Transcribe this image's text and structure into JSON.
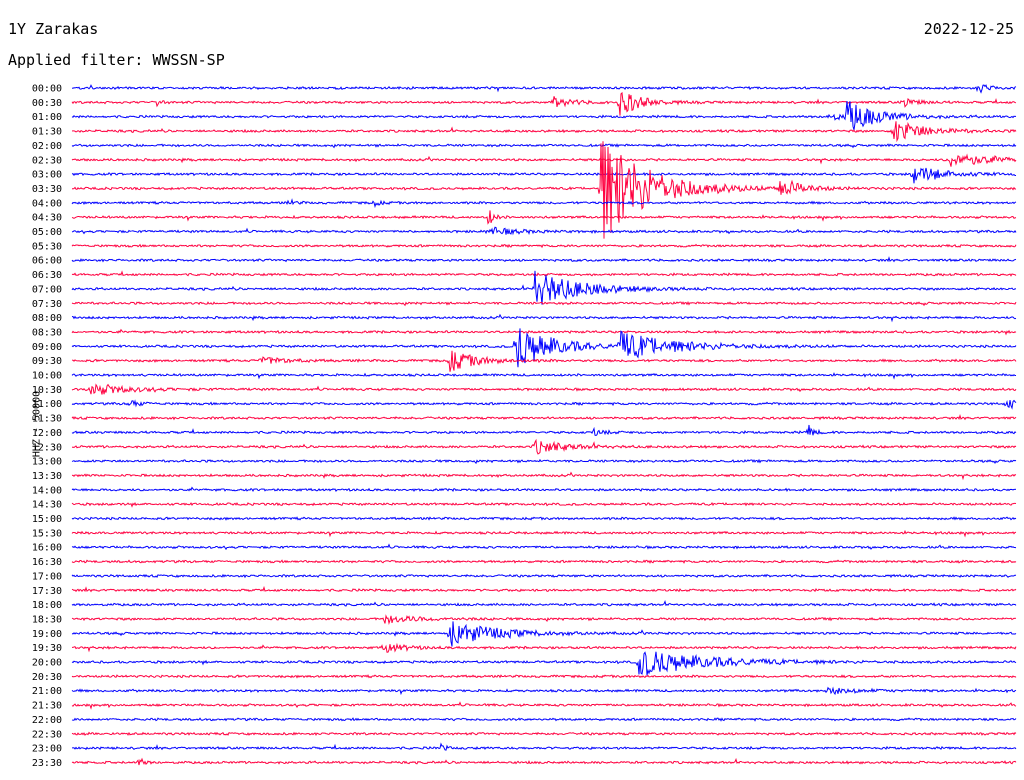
{
  "header": {
    "station": "1Y Zarakas",
    "date": "2022-12-25",
    "filter": "Applied filter: WWSSN-SP"
  },
  "chart_data": {
    "type": "line",
    "title": "1Y Zarakas",
    "subtitle": "Applied filter: WWSSN-SP",
    "ylabel": "HHZ - 50000",
    "xlabel": "",
    "colors": {
      "even_rows": "#0000ff",
      "odd_rows": "#ff0040"
    },
    "rows": [
      "00:00",
      "00:30",
      "01:00",
      "01:30",
      "02:00",
      "02:30",
      "03:00",
      "03:30",
      "04:00",
      "04:30",
      "05:00",
      "05:30",
      "06:00",
      "06:30",
      "07:00",
      "07:30",
      "08:00",
      "08:30",
      "09:00",
      "09:30",
      "10:00",
      "10:30",
      "11:00",
      "11:30",
      "12:00",
      "12:30",
      "13:00",
      "13:30",
      "14:00",
      "14:30",
      "15:00",
      "15:30",
      "16:00",
      "16:30",
      "17:00",
      "17:30",
      "18:00",
      "18:30",
      "19:00",
      "19:30",
      "20:00",
      "20:30",
      "21:00",
      "21:30",
      "22:00",
      "22:30",
      "23:00",
      "23:30"
    ],
    "events": [
      {
        "row": 0,
        "t": 0.96,
        "amp": 6,
        "dur": 0.01
      },
      {
        "row": 1,
        "t": 0.09,
        "amp": 3,
        "dur": 0.005
      },
      {
        "row": 1,
        "t": 0.51,
        "amp": 5,
        "dur": 0.02
      },
      {
        "row": 1,
        "t": 0.58,
        "amp": 14,
        "dur": 0.02
      },
      {
        "row": 1,
        "t": 0.88,
        "amp": 4,
        "dur": 0.015
      },
      {
        "row": 2,
        "t": 0.8,
        "amp": 4,
        "dur": 0.015
      },
      {
        "row": 2,
        "t": 0.82,
        "amp": 16,
        "dur": 0.03
      },
      {
        "row": 3,
        "t": 0.87,
        "amp": 12,
        "dur": 0.03
      },
      {
        "row": 5,
        "t": 0.93,
        "amp": 7,
        "dur": 0.04
      },
      {
        "row": 6,
        "t": 0.89,
        "amp": 9,
        "dur": 0.03
      },
      {
        "row": 7,
        "t": 0.56,
        "amp": 58,
        "dur": 0.045
      },
      {
        "row": 7,
        "t": 0.75,
        "amp": 10,
        "dur": 0.02
      },
      {
        "row": 8,
        "t": 0.23,
        "amp": 4,
        "dur": 0.005
      },
      {
        "row": 8,
        "t": 0.32,
        "amp": 4,
        "dur": 0.005
      },
      {
        "row": 9,
        "t": 0.44,
        "amp": 12,
        "dur": 0.005
      },
      {
        "row": 10,
        "t": 0.44,
        "amp": 4,
        "dur": 0.03
      },
      {
        "row": 14,
        "t": 0.49,
        "amp": 18,
        "dur": 0.045
      },
      {
        "row": 18,
        "t": 0.47,
        "amp": 24,
        "dur": 0.035
      },
      {
        "row": 18,
        "t": 0.58,
        "amp": 14,
        "dur": 0.055
      },
      {
        "row": 19,
        "t": 0.4,
        "amp": 11,
        "dur": 0.025
      },
      {
        "row": 19,
        "t": 0.2,
        "amp": 4,
        "dur": 0.025
      },
      {
        "row": 21,
        "t": 0.02,
        "amp": 6,
        "dur": 0.035
      },
      {
        "row": 22,
        "t": 0.06,
        "amp": 4,
        "dur": 0.01
      },
      {
        "row": 22,
        "t": 0.99,
        "amp": 6,
        "dur": 0.01
      },
      {
        "row": 24,
        "t": 0.55,
        "amp": 4,
        "dur": 0.01
      },
      {
        "row": 24,
        "t": 0.78,
        "amp": 8,
        "dur": 0.005
      },
      {
        "row": 25,
        "t": 0.49,
        "amp": 7,
        "dur": 0.03
      },
      {
        "row": 37,
        "t": 0.33,
        "amp": 4,
        "dur": 0.035
      },
      {
        "row": 38,
        "t": 0.4,
        "amp": 13,
        "dur": 0.045
      },
      {
        "row": 39,
        "t": 0.33,
        "amp": 5,
        "dur": 0.02
      },
      {
        "row": 40,
        "t": 0.6,
        "amp": 14,
        "dur": 0.065
      },
      {
        "row": 42,
        "t": 0.8,
        "amp": 3,
        "dur": 0.03
      },
      {
        "row": 46,
        "t": 0.39,
        "amp": 4,
        "dur": 0.005
      },
      {
        "row": 47,
        "t": 0.07,
        "amp": 6,
        "dur": 0.005
      }
    ]
  }
}
